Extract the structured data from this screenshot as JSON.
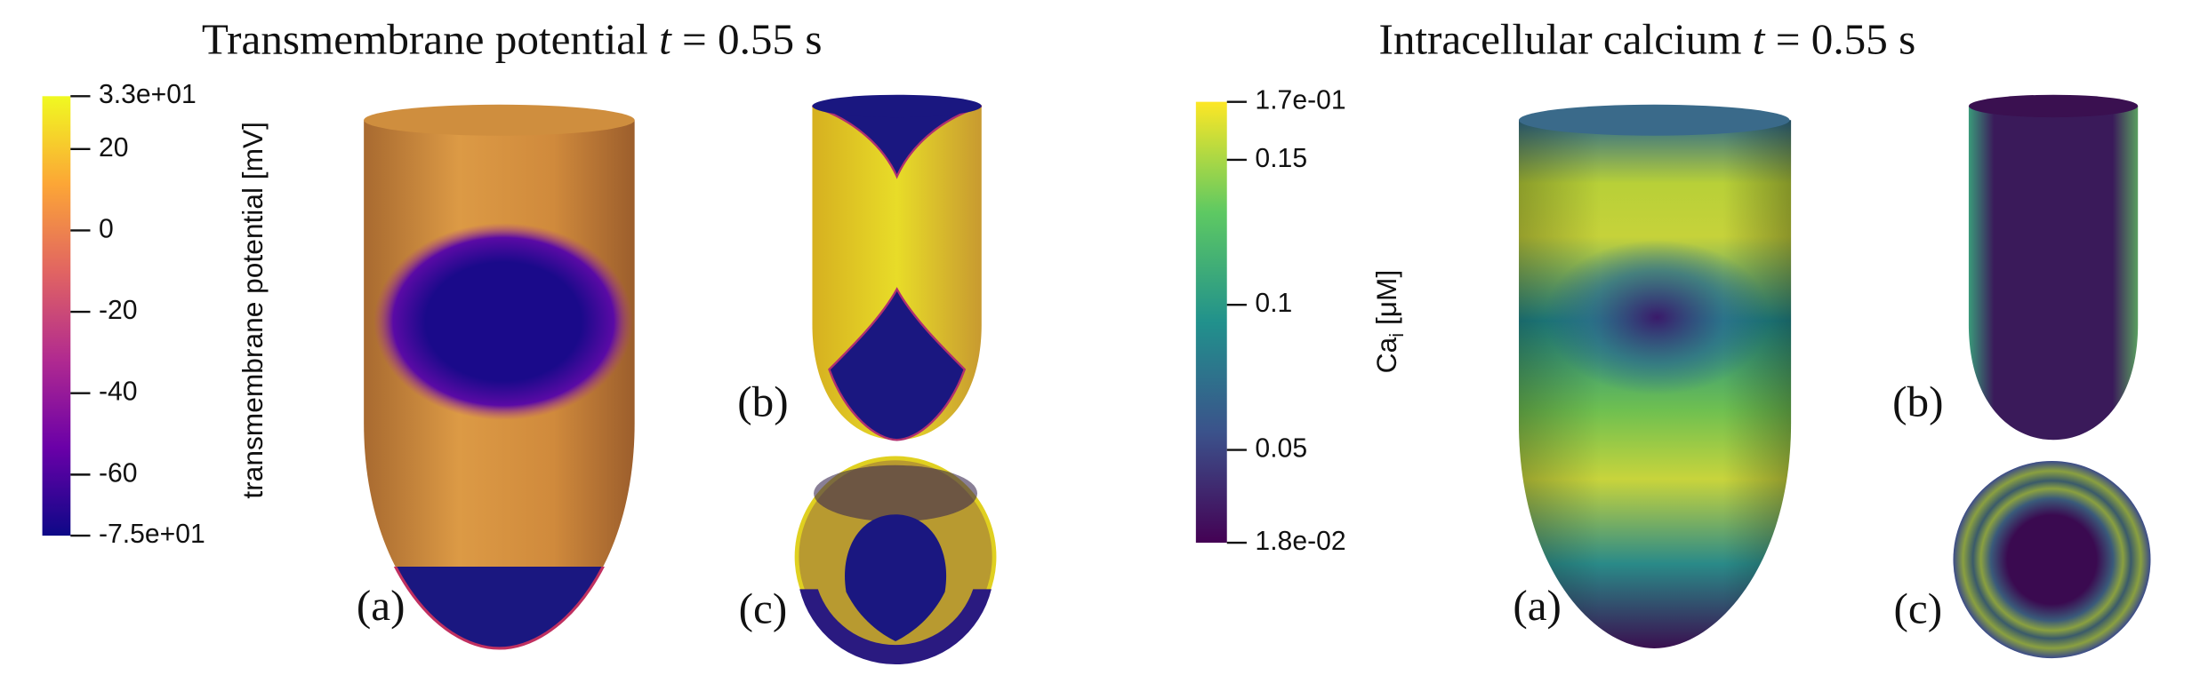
{
  "panels": [
    {
      "title": {
        "text": "Transmembrane potential ",
        "var": "t",
        "rest": " = 0.55 s"
      },
      "colorbar": {
        "label": {
          "text": "transmembrane potential [mV]"
        },
        "lim": [
          -75,
          33
        ],
        "ticks": [
          {
            "value": 33,
            "label": "3.3e+01"
          },
          20,
          0,
          -20,
          -40,
          -60,
          {
            "value": -75,
            "label": "-7.5e+01"
          }
        ],
        "colors": [
          "#0d0887",
          "#6a00a8",
          "#b12a90",
          "#e16462",
          "#fca636",
          "#f0f921"
        ]
      },
      "subfigures": [
        "(a)",
        "(b)",
        "(c)"
      ]
    },
    {
      "title": {
        "text": "Intracellular calcium ",
        "var": "t",
        "rest": " = 0.55 s"
      },
      "colorbar": {
        "label": {
          "text": "Ca",
          "sub": "i",
          "rest": " [μM]"
        },
        "lim": [
          0.018,
          0.17
        ],
        "ticks": [
          {
            "value": 0.17,
            "label": "1.7e-01"
          },
          0.15,
          0.1,
          0.05,
          {
            "value": 0.018,
            "label": "1.8e-02"
          }
        ],
        "colors": [
          "#440154",
          "#3b528b",
          "#21918c",
          "#5ec962",
          "#fde725"
        ]
      },
      "subfigures": [
        "(a)",
        "(b)",
        "(c)"
      ]
    }
  ]
}
